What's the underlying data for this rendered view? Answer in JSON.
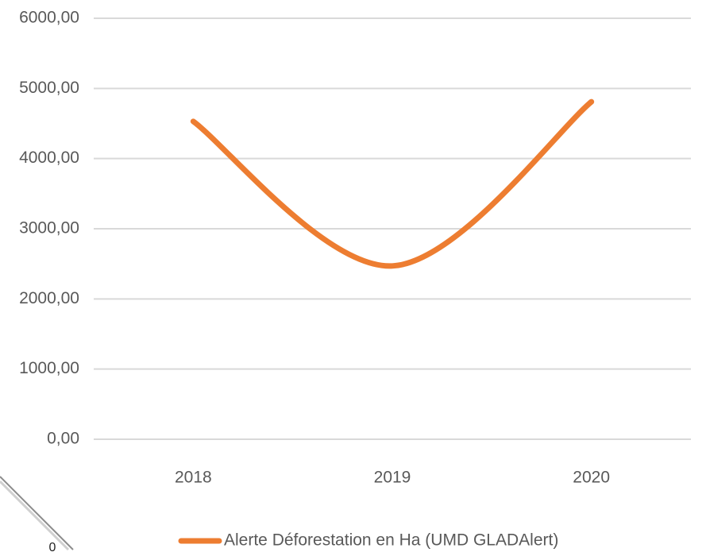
{
  "chart_data": {
    "type": "line",
    "categories": [
      "2018",
      "2019",
      "2020"
    ],
    "series": [
      {
        "name": "Alerte Déforestation en Ha (UMD GLADAlert)",
        "color": "#ed7d31",
        "values": [
          4530,
          2470,
          4810
        ]
      }
    ],
    "ylim": [
      0,
      6000
    ],
    "yticks": [
      {
        "value": 0,
        "label": "0,00"
      },
      {
        "value": 1000,
        "label": "1000,00"
      },
      {
        "value": 2000,
        "label": "2000,00"
      },
      {
        "value": 3000,
        "label": "3000,00"
      },
      {
        "value": 4000,
        "label": "4000,00"
      },
      {
        "value": 5000,
        "label": "5000,00"
      },
      {
        "value": 6000,
        "label": "6000,00"
      }
    ],
    "grid": true,
    "smooth": true,
    "legend": "bottom"
  },
  "corner_label": "0"
}
